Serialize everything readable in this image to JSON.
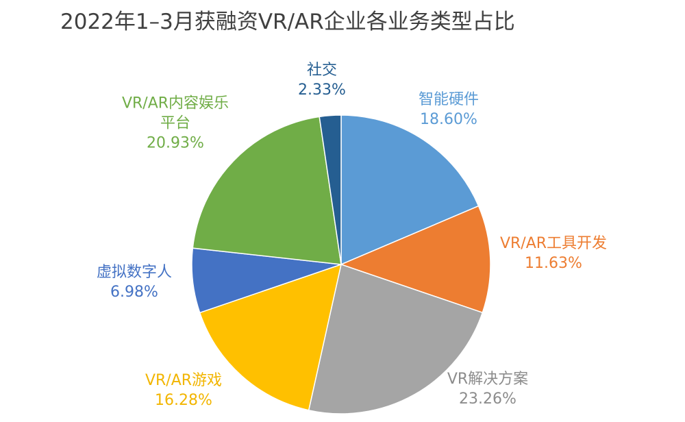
{
  "chart_data": {
    "type": "pie",
    "title": "2022年1–3月获融资VR/AR企业各业务类型占比",
    "categories": [
      "智能硬件",
      "VR/AR工具开发",
      "VR解决方案",
      "VR/AR游戏",
      "虚拟数字人",
      "VR/AR内容娱乐平台",
      "社交"
    ],
    "values": [
      18.6,
      11.63,
      23.26,
      16.28,
      6.98,
      20.93,
      2.33
    ],
    "value_labels": [
      "18.60%",
      "11.63%",
      "23.26%",
      "16.28%",
      "6.98%",
      "20.93%",
      "2.33%"
    ],
    "colors": [
      "#5b9bd5",
      "#ed7d31",
      "#a5a5a5",
      "#ffc000",
      "#4472c4",
      "#70ad47",
      "#255e91"
    ]
  }
}
